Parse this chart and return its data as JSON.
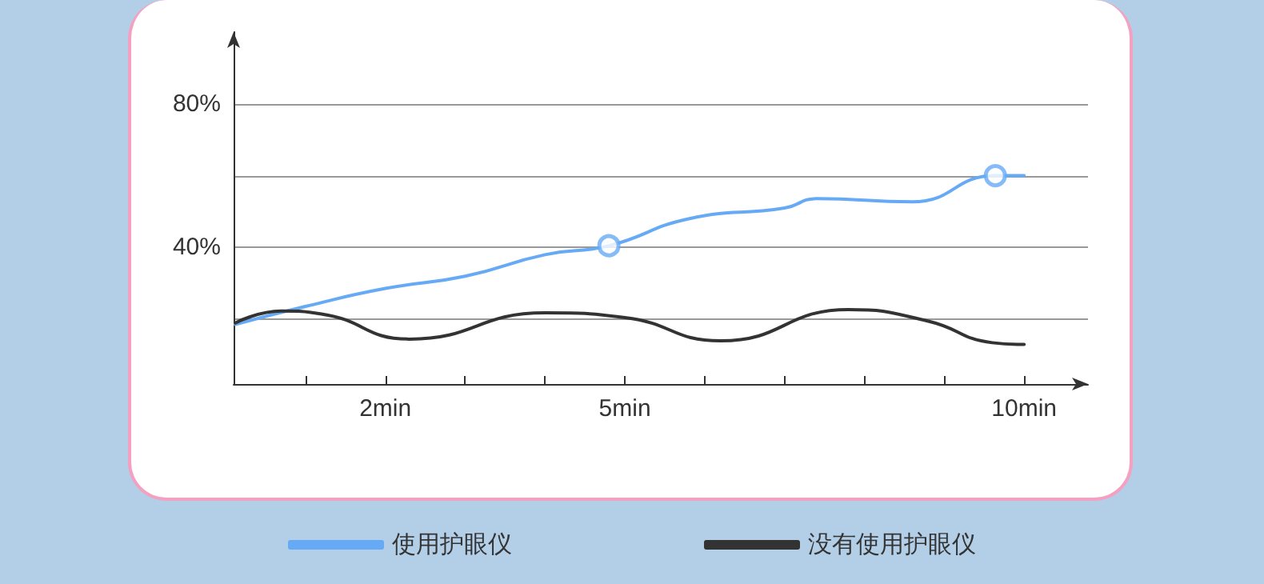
{
  "chart_data": {
    "type": "line",
    "xlim": [
      0.1,
      10.8
    ],
    "ylim": [
      2,
      100
    ],
    "xticks": [
      {
        "value": 1,
        "label": null
      },
      {
        "value": 2,
        "label": "2min"
      },
      {
        "value": 3,
        "label": null
      },
      {
        "value": 4,
        "label": null
      },
      {
        "value": 5,
        "label": "5min"
      },
      {
        "value": 6,
        "label": null
      },
      {
        "value": 7,
        "label": null
      },
      {
        "value": 8,
        "label": null
      },
      {
        "value": 9,
        "label": null
      },
      {
        "value": 10,
        "label": "10min"
      }
    ],
    "yticks": [
      {
        "value": 20,
        "label": null
      },
      {
        "value": 40,
        "label": "40%"
      },
      {
        "value": 60,
        "label": null
      },
      {
        "value": 80,
        "label": "80%"
      }
    ],
    "grid": "y",
    "legend": "bottom",
    "marker": "none",
    "line_style": "solid",
    "series": [
      {
        "name": "使用护眼仪",
        "color": "#66aaf5",
        "x": [
          0.12,
          1,
          2,
          3,
          4,
          4.8,
          5.8,
          7,
          7.4,
          8.6,
          9.64,
          10
        ],
        "values": [
          18.6,
          23.6,
          28.6,
          32,
          38,
          40.5,
          48,
          51,
          53.6,
          52.7,
          60,
          60
        ]
      },
      {
        "name": "没有使用护眼仪",
        "color": "#333333",
        "x": [
          0.12,
          0.7,
          1.2,
          2.3,
          4,
          5,
          6.2,
          7.8,
          8.8,
          9.6,
          10
        ],
        "values": [
          19,
          22.3,
          21.5,
          14.5,
          21.8,
          20.5,
          14,
          22.7,
          19.5,
          13.5,
          13
        ]
      },
      {
        "type": "scatter",
        "marker": "circle",
        "color": "#66aaf5",
        "x": [
          4.8,
          9.64
        ],
        "values": [
          40.5,
          60
        ]
      }
    ]
  }
}
